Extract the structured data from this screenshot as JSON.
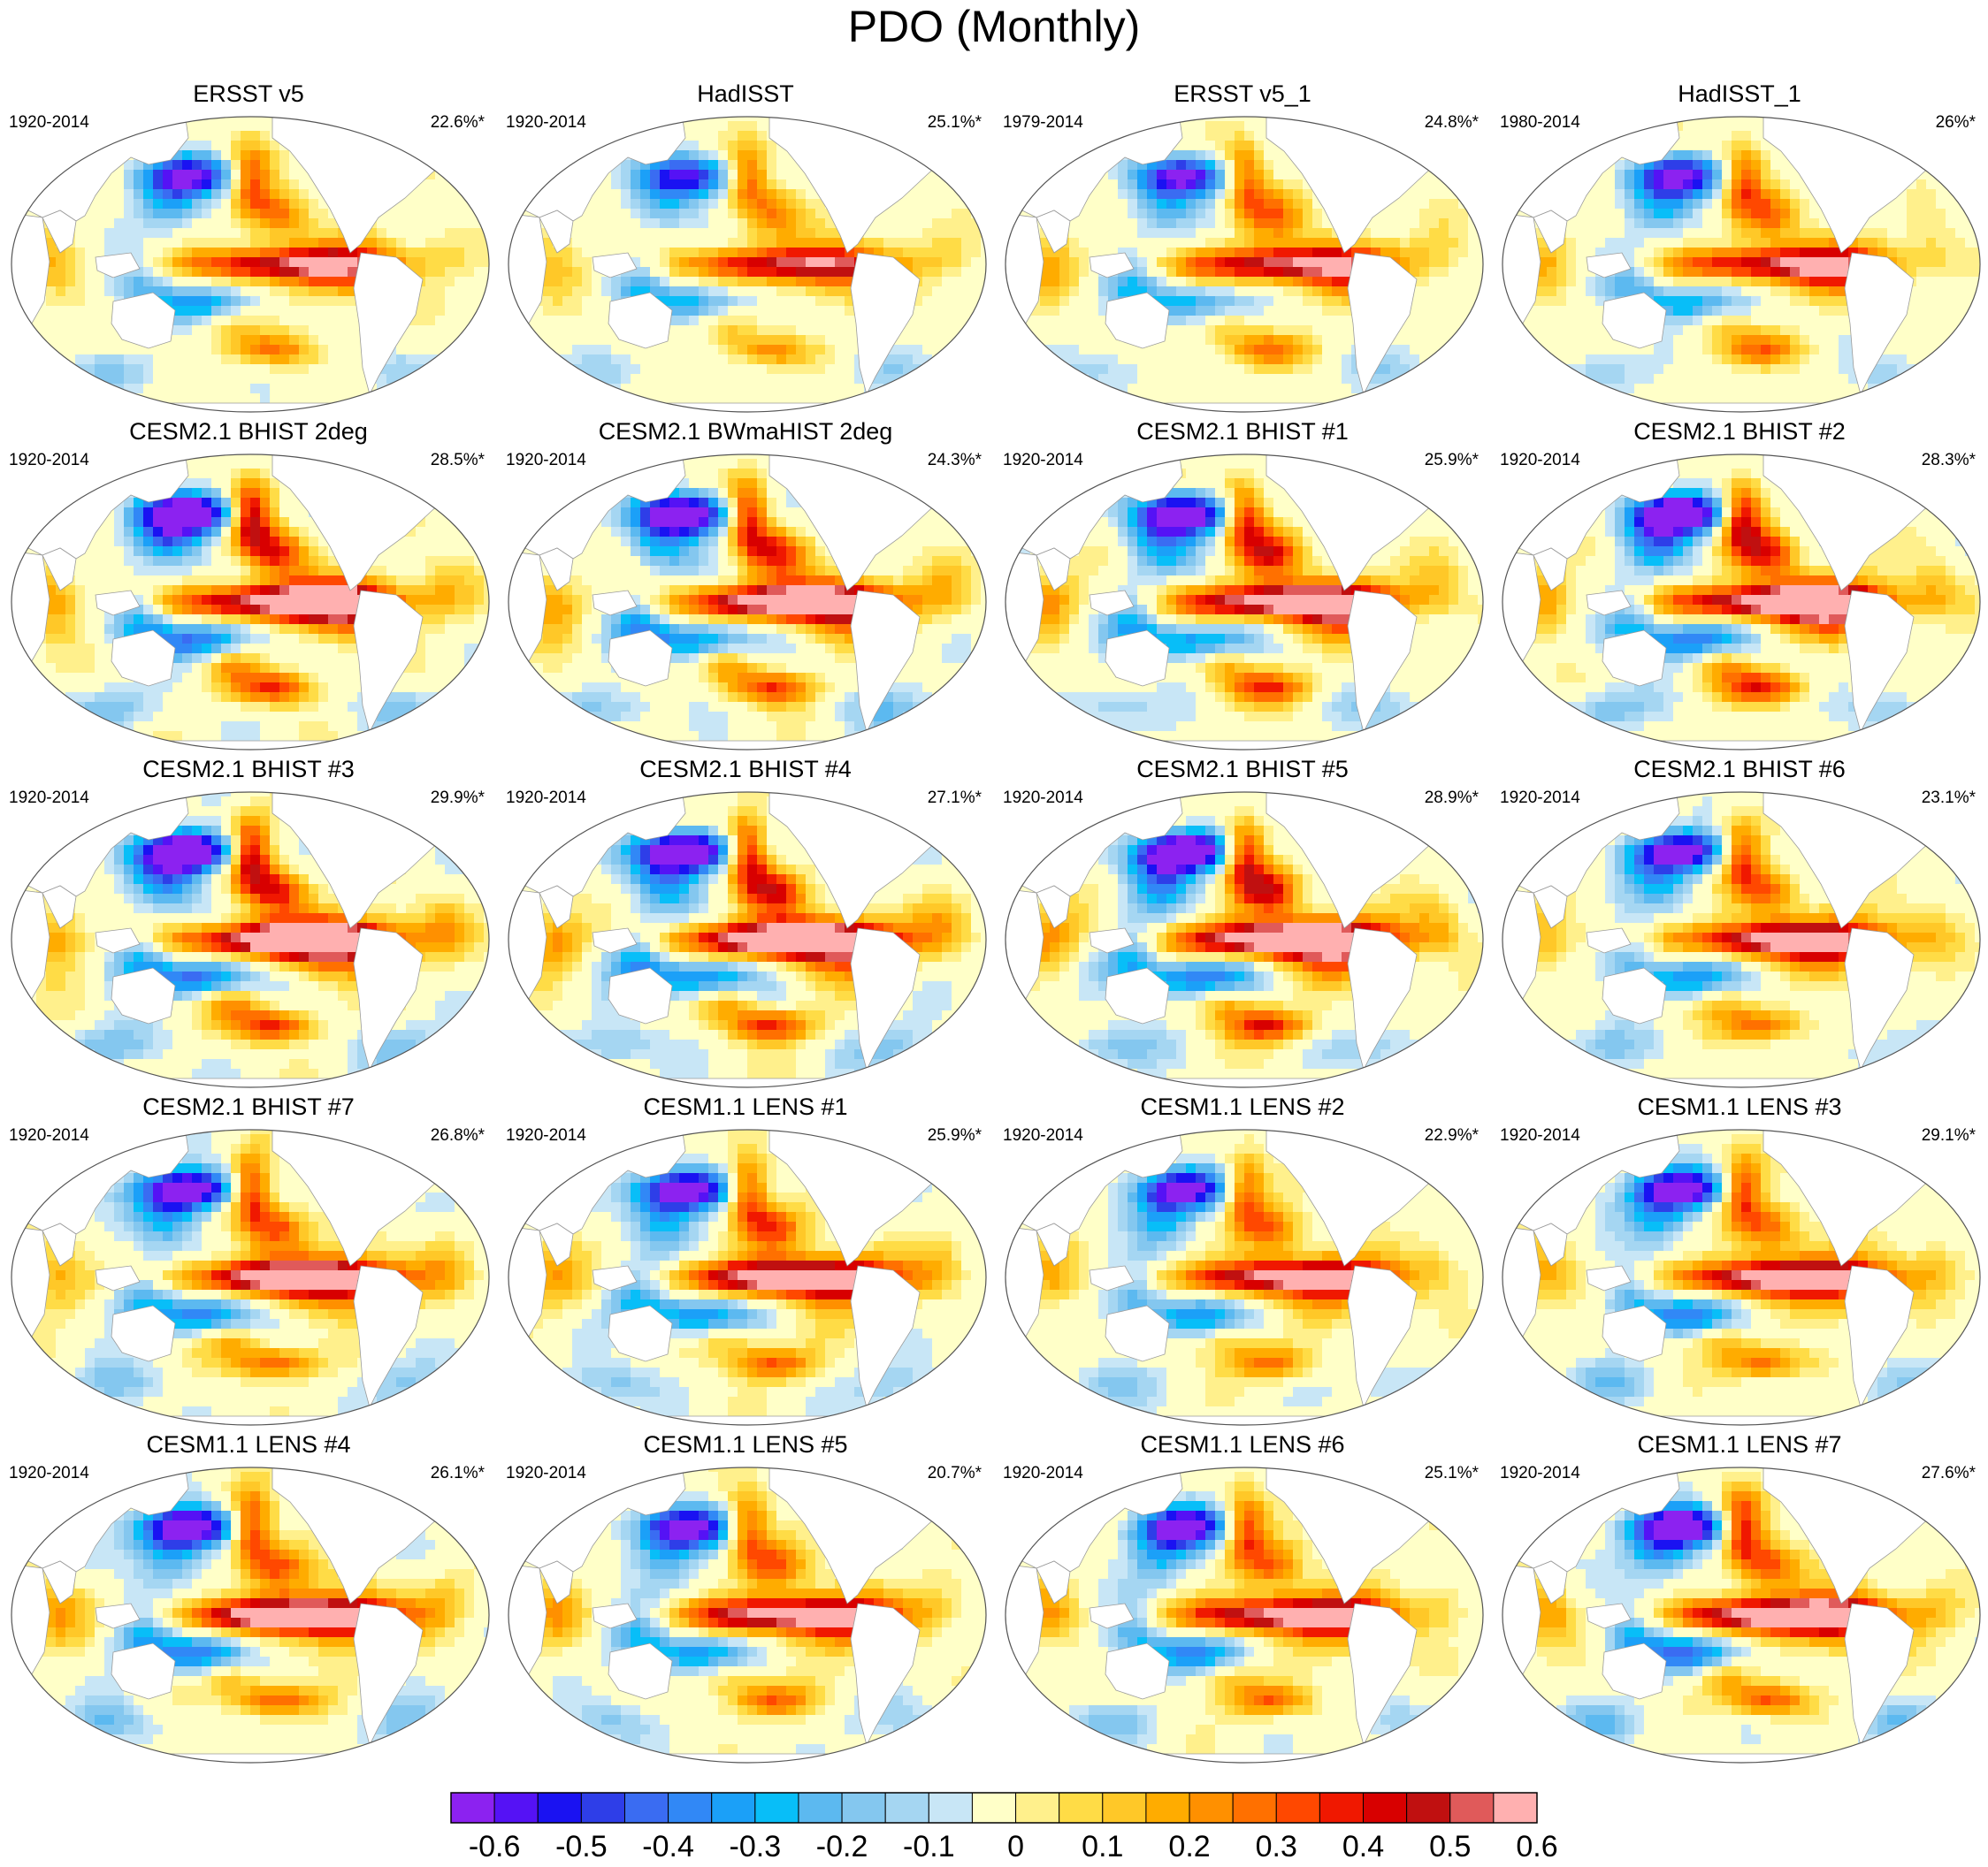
{
  "title": "PDO (Monthly)",
  "panels": [
    {
      "name": "ERSST v5",
      "period": "1920-2014",
      "variance": "22.6%*",
      "strength": 0.55,
      "seed": 1
    },
    {
      "name": "HadISST",
      "period": "1920-2014",
      "variance": "25.1%*",
      "strength": 0.5,
      "seed": 2
    },
    {
      "name": "ERSST v5_1",
      "period": "1979-2014",
      "variance": "24.8%*",
      "strength": 0.55,
      "seed": 3
    },
    {
      "name": "HadISST_1",
      "period": "1980-2014",
      "variance": "26%*",
      "strength": 0.55,
      "seed": 4
    },
    {
      "name": "CESM2.1 BHIST 2deg",
      "period": "1920-2014",
      "variance": "28.5%*",
      "strength": 0.75,
      "seed": 5
    },
    {
      "name": "CESM2.1 BWmaHIST 2deg",
      "period": "1920-2014",
      "variance": "24.3%*",
      "strength": 0.72,
      "seed": 6
    },
    {
      "name": "CESM2.1 BHIST #1",
      "period": "1920-2014",
      "variance": "25.9%*",
      "strength": 0.7,
      "seed": 7
    },
    {
      "name": "CESM2.1 BHIST #2",
      "period": "1920-2014",
      "variance": "28.3%*",
      "strength": 0.75,
      "seed": 8
    },
    {
      "name": "CESM2.1 BHIST #3",
      "period": "1920-2014",
      "variance": "29.9%*",
      "strength": 0.8,
      "seed": 9
    },
    {
      "name": "CESM2.1 BHIST #4",
      "period": "1920-2014",
      "variance": "27.1%*",
      "strength": 0.78,
      "seed": 10
    },
    {
      "name": "CESM2.1 BHIST #5",
      "period": "1920-2014",
      "variance": "28.9%*",
      "strength": 0.78,
      "seed": 11
    },
    {
      "name": "CESM2.1 BHIST #6",
      "period": "1920-2014",
      "variance": "23.1%*",
      "strength": 0.62,
      "seed": 12
    },
    {
      "name": "CESM2.1 BHIST #7",
      "period": "1920-2014",
      "variance": "26.8%*",
      "strength": 0.7,
      "seed": 13
    },
    {
      "name": "CESM1.1 LENS #1",
      "period": "1920-2014",
      "variance": "25.9%*",
      "strength": 0.68,
      "seed": 14
    },
    {
      "name": "CESM1.1 LENS #2",
      "period": "1920-2014",
      "variance": "22.9%*",
      "strength": 0.6,
      "seed": 15
    },
    {
      "name": "CESM1.1 LENS #3",
      "period": "1920-2014",
      "variance": "29.1%*",
      "strength": 0.65,
      "seed": 16
    },
    {
      "name": "CESM1.1 LENS #4",
      "period": "1920-2014",
      "variance": "26.1%*",
      "strength": 0.7,
      "seed": 17
    },
    {
      "name": "CESM1.1 LENS #5",
      "period": "1920-2014",
      "variance": "20.7%*",
      "strength": 0.62,
      "seed": 18
    },
    {
      "name": "CESM1.1 LENS #6",
      "period": "1920-2014",
      "variance": "25.1%*",
      "strength": 0.62,
      "seed": 19
    },
    {
      "name": "CESM1.1 LENS #7",
      "period": "1920-2014",
      "variance": "27.6%*",
      "strength": 0.7,
      "seed": 20
    }
  ],
  "colorbar": {
    "labels": [
      "-0.6",
      "-0.5",
      "-0.4",
      "-0.3",
      "-0.2",
      "-0.1",
      "0",
      "0.1",
      "0.2",
      "0.3",
      "0.4",
      "0.5",
      "0.6"
    ],
    "colors": [
      "#8c22f0",
      "#5512f5",
      "#1a12f2",
      "#2e3ee8",
      "#3a6cf2",
      "#3188f6",
      "#1ba0f8",
      "#08bef8",
      "#5cb9f0",
      "#84c7ef",
      "#a5d6f2",
      "#c8e6f6",
      "#ffffc8",
      "#fff08c",
      "#ffdc46",
      "#ffc828",
      "#ffac00",
      "#ff9000",
      "#ff7000",
      "#ff4800",
      "#f01800",
      "#d80000",
      "#c01010",
      "#e05a5a",
      "#ffb0b0"
    ]
  }
}
